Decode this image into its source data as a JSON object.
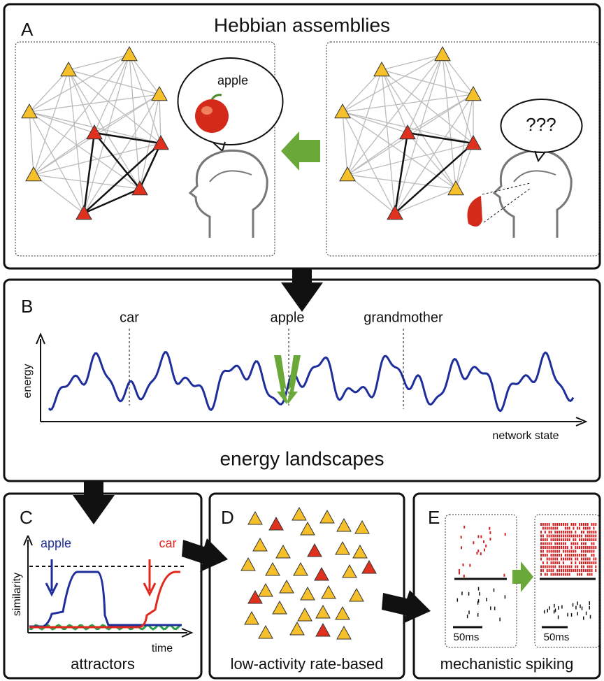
{
  "panels": [
    {
      "label": "A",
      "title": "Hebbian assemblies",
      "bubbles": [
        "apple",
        "???"
      ]
    },
    {
      "label": "B",
      "markers": [
        "car",
        "apple",
        "grandmother"
      ],
      "y_axis": "energy",
      "x_axis": "network state",
      "caption": "energy landscapes"
    },
    {
      "label": "C",
      "curves": [
        "apple",
        "car"
      ],
      "y_axis": "similarity",
      "x_axis": "time",
      "caption": "attractors"
    },
    {
      "label": "D",
      "caption": "low-activity rate-based"
    },
    {
      "label": "E",
      "scale_bars": [
        "50ms",
        "50ms"
      ],
      "caption": "mechanistic spiking"
    }
  ]
}
